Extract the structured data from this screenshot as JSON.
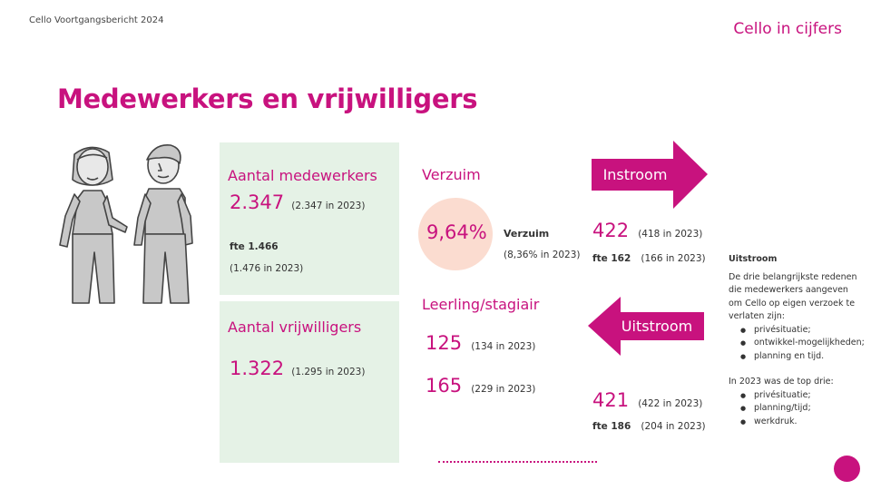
{
  "header": {
    "report": "Cello Voortgangsbericht 2024",
    "section": "Cello in cijfers"
  },
  "title": "Medewerkers en vrijwilligers",
  "employees": {
    "label": "Aantal medewerkers",
    "count": "2.347",
    "count_prev": "(2.347 in 2023)",
    "fte": "fte 1.466",
    "fte_prev": "(1.476 in 2023)"
  },
  "volunteers": {
    "label": "Aantal vrijwilligers",
    "count": "1.322",
    "count_prev": "(1.295  in 2023)"
  },
  "verzuim": {
    "heading": "Verzuim",
    "value": "9,64%",
    "label": "Verzuim",
    "prev": "(8,36% in 2023)"
  },
  "trainees": {
    "heading": "Leerling/stagiair",
    "row1_value": "125",
    "row1_prev": "(134 in 2023)",
    "row2_value": "165",
    "row2_prev": "(229 in 2023)"
  },
  "instroom": {
    "label": "Instroom",
    "count": "422",
    "count_prev": "(418 in 2023)",
    "fte": "fte 162",
    "fte_prev": "(166  in 2023)"
  },
  "uitstroom": {
    "label": "Uitstroom",
    "count": "421",
    "count_prev": "(422 in 2023)",
    "fte": "fte 186",
    "fte_prev": "(204 in 2023)"
  },
  "uitstroom_text": {
    "heading": "Uitstroom",
    "intro": "De drie belangrijkste redenen die medewerkers aangeven om Cello op eigen verzoek te verlaten zijn:",
    "reasons": [
      "privésituatie;",
      "ontwikkel-mogelijkheden;",
      "planning en tijd."
    ],
    "top_intro": "In 2023 was de top drie:",
    "top": [
      "privésituatie;",
      "planning/tijd;",
      "werkdruk."
    ]
  },
  "colors": {
    "accent": "#c8127e",
    "panel": "#e5f2e6",
    "circle": "#fbdcd0"
  }
}
